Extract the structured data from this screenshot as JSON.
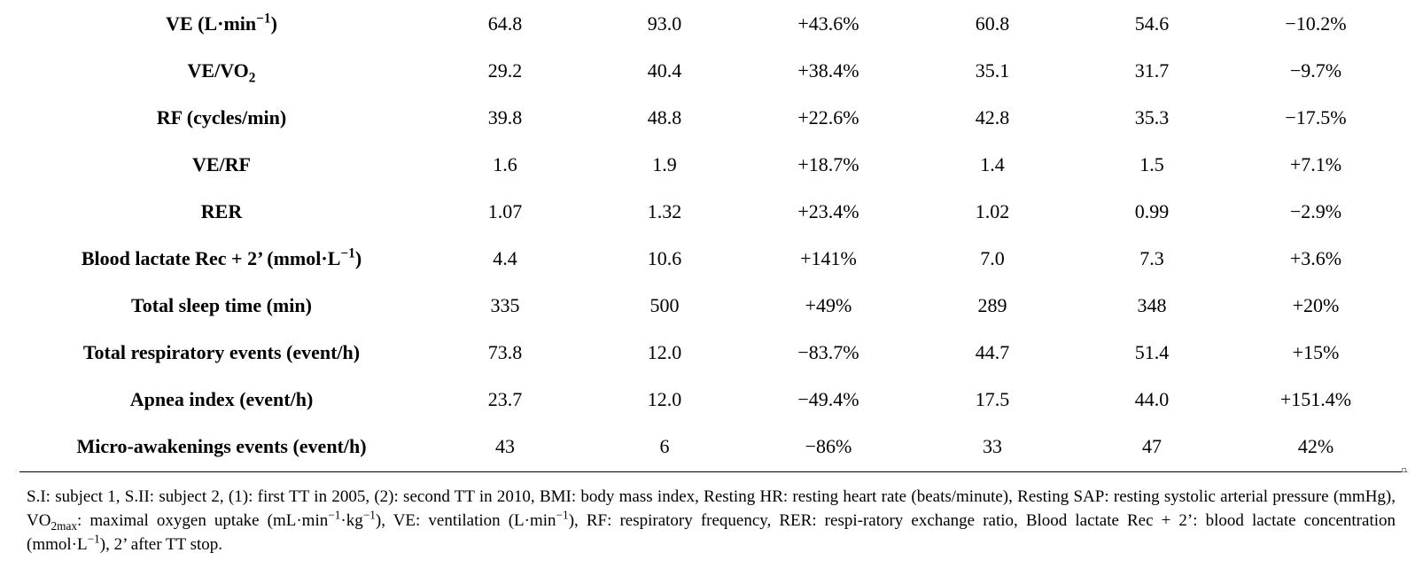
{
  "rows": [
    {
      "label": "VE (L·min",
      "label_sup": "−1",
      "label_tail": ")",
      "values": [
        "64.8",
        "93.0",
        "+43.6%",
        "60.8",
        "54.6",
        "−10.2%"
      ]
    },
    {
      "label": "VE/VO",
      "label_sub": "2",
      "label_tail": "",
      "values": [
        "29.2",
        "40.4",
        "+38.4%",
        "35.1",
        "31.7",
        "−9.7%"
      ]
    },
    {
      "label": "RF (cycles/min)",
      "values": [
        "39.8",
        "48.8",
        "+22.6%",
        "42.8",
        "35.3",
        "−17.5%"
      ]
    },
    {
      "label": "VE/RF",
      "values": [
        "1.6",
        "1.9",
        "+18.7%",
        "1.4",
        "1.5",
        "+7.1%"
      ]
    },
    {
      "label": "RER",
      "values": [
        "1.07",
        "1.32",
        "+23.4%",
        "1.02",
        "0.99",
        "−2.9%"
      ]
    },
    {
      "label": "Blood lactate Rec + 2’ (mmol·L",
      "label_sup": "−1",
      "label_tail": ")",
      "values": [
        "4.4",
        "10.6",
        "+141%",
        "7.0",
        "7.3",
        "+3.6%"
      ]
    },
    {
      "label": "Total sleep time (min)",
      "values": [
        "335",
        "500",
        "+49%",
        "289",
        "348",
        "+20%"
      ]
    },
    {
      "label": "Total respiratory events (event/h)",
      "values": [
        "73.8",
        "12.0",
        "−83.7%",
        "44.7",
        "51.4",
        "+15%"
      ]
    },
    {
      "label": "Apnea index (event/h)",
      "values": [
        "23.7",
        "12.0",
        "−49.4%",
        "17.5",
        "44.0",
        "+151.4%"
      ]
    },
    {
      "label": "Micro-awakenings events (event/h)",
      "values": [
        "43",
        "6",
        "−86%",
        "33",
        "47",
        "42%"
      ]
    }
  ],
  "footnote": {
    "part1": "S.I: subject 1, S.II: subject 2, (1): first TT in 2005, (2): second TT in 2010, BMI: body mass index, Resting HR: resting heart rate (beats/minute), Resting SAP: resting systolic arterial pressure (mmHg), VO",
    "sub1": "2max",
    "part2": ": maximal oxygen uptake (mL·min",
    "sup1": "−1",
    "part3": "·kg",
    "sup2": "−1",
    "part4": "), VE: ventilation (L·min",
    "sup3": "−1",
    "part5": "), RF: respiratory frequency, RER: respi-ratory exchange ratio, Blood lactate Rec + 2’: blood lactate concentration (mmol·L",
    "sup4": "−1",
    "part6": "), 2’ after TT stop."
  }
}
